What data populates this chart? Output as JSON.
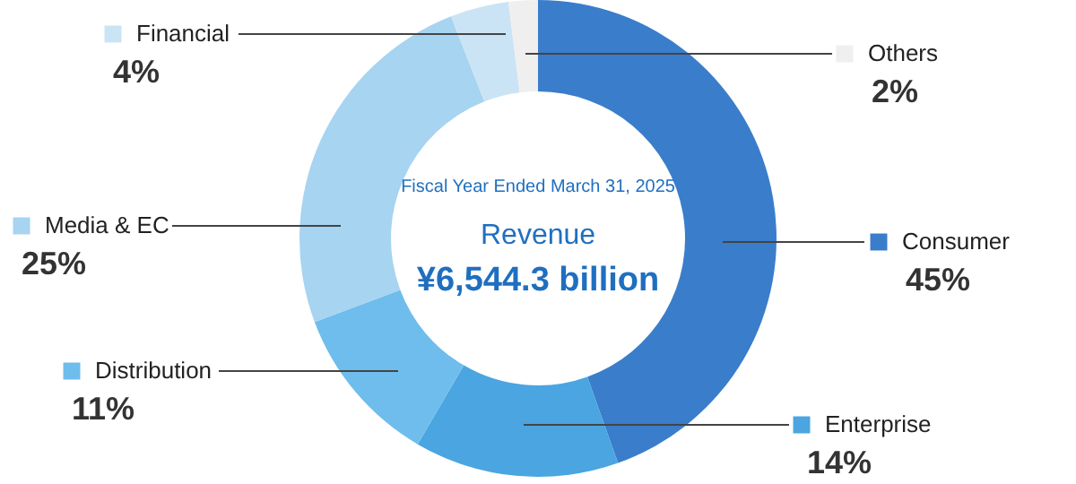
{
  "chart_data": {
    "type": "donut",
    "categories": [
      "Consumer",
      "Enterprise",
      "Distribution",
      "Media & EC",
      "Financial",
      "Others"
    ],
    "values": [
      45,
      14,
      11,
      25,
      4,
      2
    ],
    "value_labels": [
      "45%",
      "14%",
      "11%",
      "25%",
      "4%",
      "2%"
    ],
    "legend": "top left",
    "colors": [
      "#3a7dcb",
      "#4aa5e1",
      "#6fbdec",
      "#a6d4f1",
      "#cbe4f5",
      "#efefef"
    ],
    "annotations": [
      "Fiscal Year Ended March 31, 2025",
      "Revenue",
      "¥6,544.3 billion"
    ]
  }
}
